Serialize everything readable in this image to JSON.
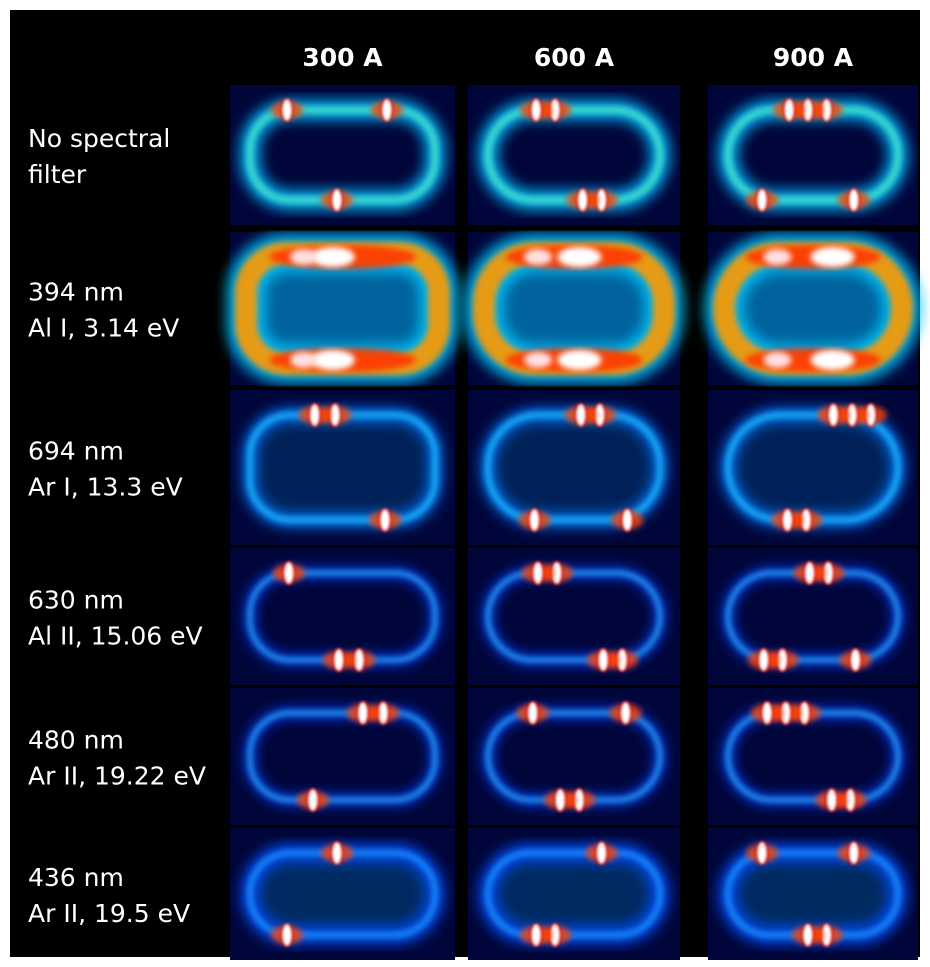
{
  "header": {
    "columns": [
      "300 A",
      "600 A",
      "900 A"
    ]
  },
  "rows": [
    {
      "label": [
        "No spectral",
        "filter"
      ]
    },
    {
      "label": [
        "394 nm",
        "Al I, 3.14 eV"
      ]
    },
    {
      "label": [
        "694 nm",
        "Ar I, 13.3 eV"
      ]
    },
    {
      "label": [
        "630 nm",
        "Al II, 15.06 eV"
      ]
    },
    {
      "label": [
        "480 nm",
        "Ar II, 19.22 eV"
      ]
    },
    {
      "label": [
        "436 nm",
        "Ar II, 19.5 eV"
      ]
    }
  ]
}
